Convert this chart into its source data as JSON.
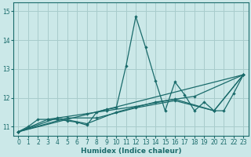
{
  "xlabel": "Humidex (Indice chaleur)",
  "bg_color": "#cbe8e8",
  "grid_color": "#a8cccc",
  "line_color": "#1a6b6b",
  "spine_color": "#1a6b6b",
  "xlim": [
    -0.5,
    23.5
  ],
  "ylim": [
    10.68,
    15.3
  ],
  "yticks": [
    11,
    12,
    13,
    14,
    15
  ],
  "xticks": [
    0,
    1,
    2,
    3,
    4,
    5,
    6,
    7,
    8,
    9,
    10,
    11,
    12,
    13,
    14,
    15,
    16,
    17,
    18,
    19,
    20,
    21,
    22,
    23
  ],
  "main_series": [
    [
      0,
      10.82
    ],
    [
      1,
      11.0
    ],
    [
      2,
      11.25
    ],
    [
      3,
      11.25
    ],
    [
      4,
      11.25
    ],
    [
      5,
      11.2
    ],
    [
      6,
      11.15
    ],
    [
      7,
      11.05
    ],
    [
      8,
      11.5
    ],
    [
      9,
      11.6
    ],
    [
      10,
      11.65
    ],
    [
      11,
      13.1
    ],
    [
      12,
      14.82
    ],
    [
      13,
      13.75
    ],
    [
      14,
      12.6
    ],
    [
      15,
      11.55
    ],
    [
      16,
      12.55
    ],
    [
      17,
      12.1
    ],
    [
      18,
      11.55
    ],
    [
      19,
      11.85
    ],
    [
      20,
      11.55
    ],
    [
      21,
      11.55
    ],
    [
      22,
      12.15
    ],
    [
      23,
      12.8
    ]
  ],
  "trend_line1": [
    [
      0,
      10.82
    ],
    [
      23,
      12.8
    ]
  ],
  "trend_line2": [
    [
      0,
      10.82
    ],
    [
      3,
      11.25
    ],
    [
      7,
      11.45
    ],
    [
      9,
      11.55
    ],
    [
      12,
      11.7
    ],
    [
      16,
      11.95
    ],
    [
      20,
      11.55
    ],
    [
      23,
      12.8
    ]
  ],
  "trend_line3": [
    [
      0,
      10.82
    ],
    [
      4,
      11.3
    ],
    [
      7,
      11.1
    ],
    [
      10,
      11.5
    ],
    [
      14,
      11.85
    ],
    [
      18,
      12.05
    ],
    [
      23,
      12.8
    ]
  ],
  "trend_line4": [
    [
      0,
      10.82
    ],
    [
      5,
      11.3
    ],
    [
      8,
      11.3
    ],
    [
      12,
      11.65
    ],
    [
      16,
      11.9
    ],
    [
      20,
      11.55
    ],
    [
      23,
      12.8
    ]
  ]
}
